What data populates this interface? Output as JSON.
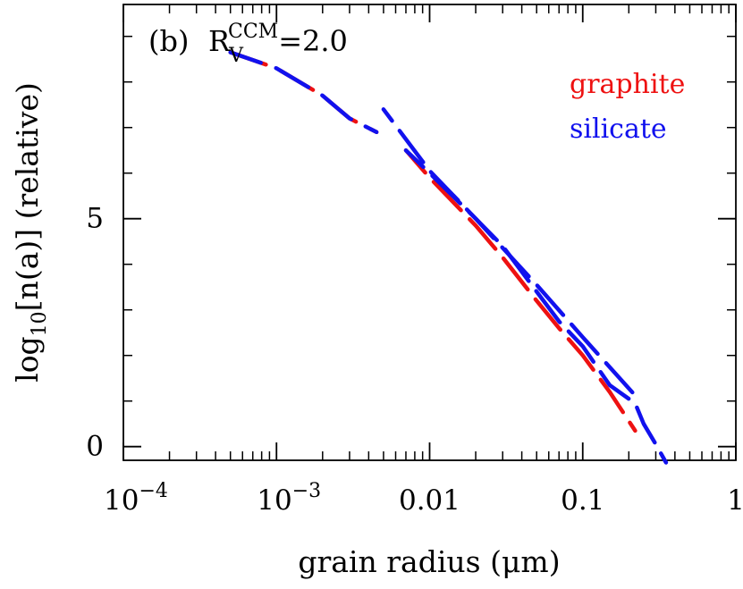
{
  "chart_data": {
    "type": "line",
    "panel_label": "(b)",
    "rv_main": "R",
    "rv_sub": "V",
    "rv_sup": "CCM",
    "rv_value": "=2.0",
    "xlabel": "grain radius (μm)",
    "ylabel_pre": "log",
    "ylabel_sub": "10",
    "ylabel_post": "[n(a)] (relative)",
    "x_scale": "log",
    "xlim": [
      0.0001,
      1
    ],
    "ylim": [
      -0.3,
      9.7
    ],
    "x_ticks": [
      {
        "value": 0.0001,
        "base": "10",
        "exp": "−4"
      },
      {
        "value": 0.001,
        "base": "10",
        "exp": "−3"
      },
      {
        "value": 0.01,
        "base": "0.01",
        "exp": ""
      },
      {
        "value": 0.1,
        "base": "0.1",
        "exp": ""
      },
      {
        "value": 1,
        "base": "1",
        "exp": ""
      }
    ],
    "y_ticks": [
      {
        "value": 0,
        "label": "0"
      },
      {
        "value": 5,
        "label": "5"
      }
    ],
    "y_minor_ticks": [
      1,
      2,
      3,
      4,
      6,
      7,
      8,
      9
    ],
    "legend_position": "top-right",
    "series": [
      {
        "name": "graphite",
        "color": "#ee1111",
        "segments": [
          {
            "x": [
              0.0005,
              0.001,
              0.002,
              0.003,
              0.0045
            ],
            "y": [
              8.65,
              8.3,
              7.7,
              7.2,
              6.9
            ]
          },
          {
            "x": [
              0.007,
              0.01,
              0.02,
              0.03,
              0.05,
              0.07,
              0.1,
              0.15,
              0.22
            ],
            "y": [
              6.5,
              5.9,
              4.85,
              4.15,
              3.2,
              2.6,
              2.0,
              1.2,
              0.35
            ]
          }
        ]
      },
      {
        "name": "silicate",
        "color": "#1111ee",
        "segments": [
          {
            "x": [
              0.0005,
              0.001,
              0.002,
              0.003,
              0.0045
            ],
            "y": [
              8.65,
              8.3,
              7.7,
              7.2,
              6.9
            ]
          },
          {
            "x": [
              0.007,
              0.01,
              0.02,
              0.03,
              0.05,
              0.07,
              0.1,
              0.15,
              0.22,
              0.25,
              0.3,
              0.35
            ],
            "y": [
              6.5,
              6.0,
              5.0,
              4.4,
              3.4,
              2.75,
              2.2,
              1.35,
              0.95,
              0.5,
              0.05,
              -0.35
            ]
          },
          {
            "x": [
              0.005,
              0.01,
              0.02,
              0.05,
              0.1,
              0.23
            ],
            "y": [
              7.4,
              6.05,
              5.0,
              3.55,
              2.4,
              1.05
            ]
          }
        ]
      }
    ]
  }
}
